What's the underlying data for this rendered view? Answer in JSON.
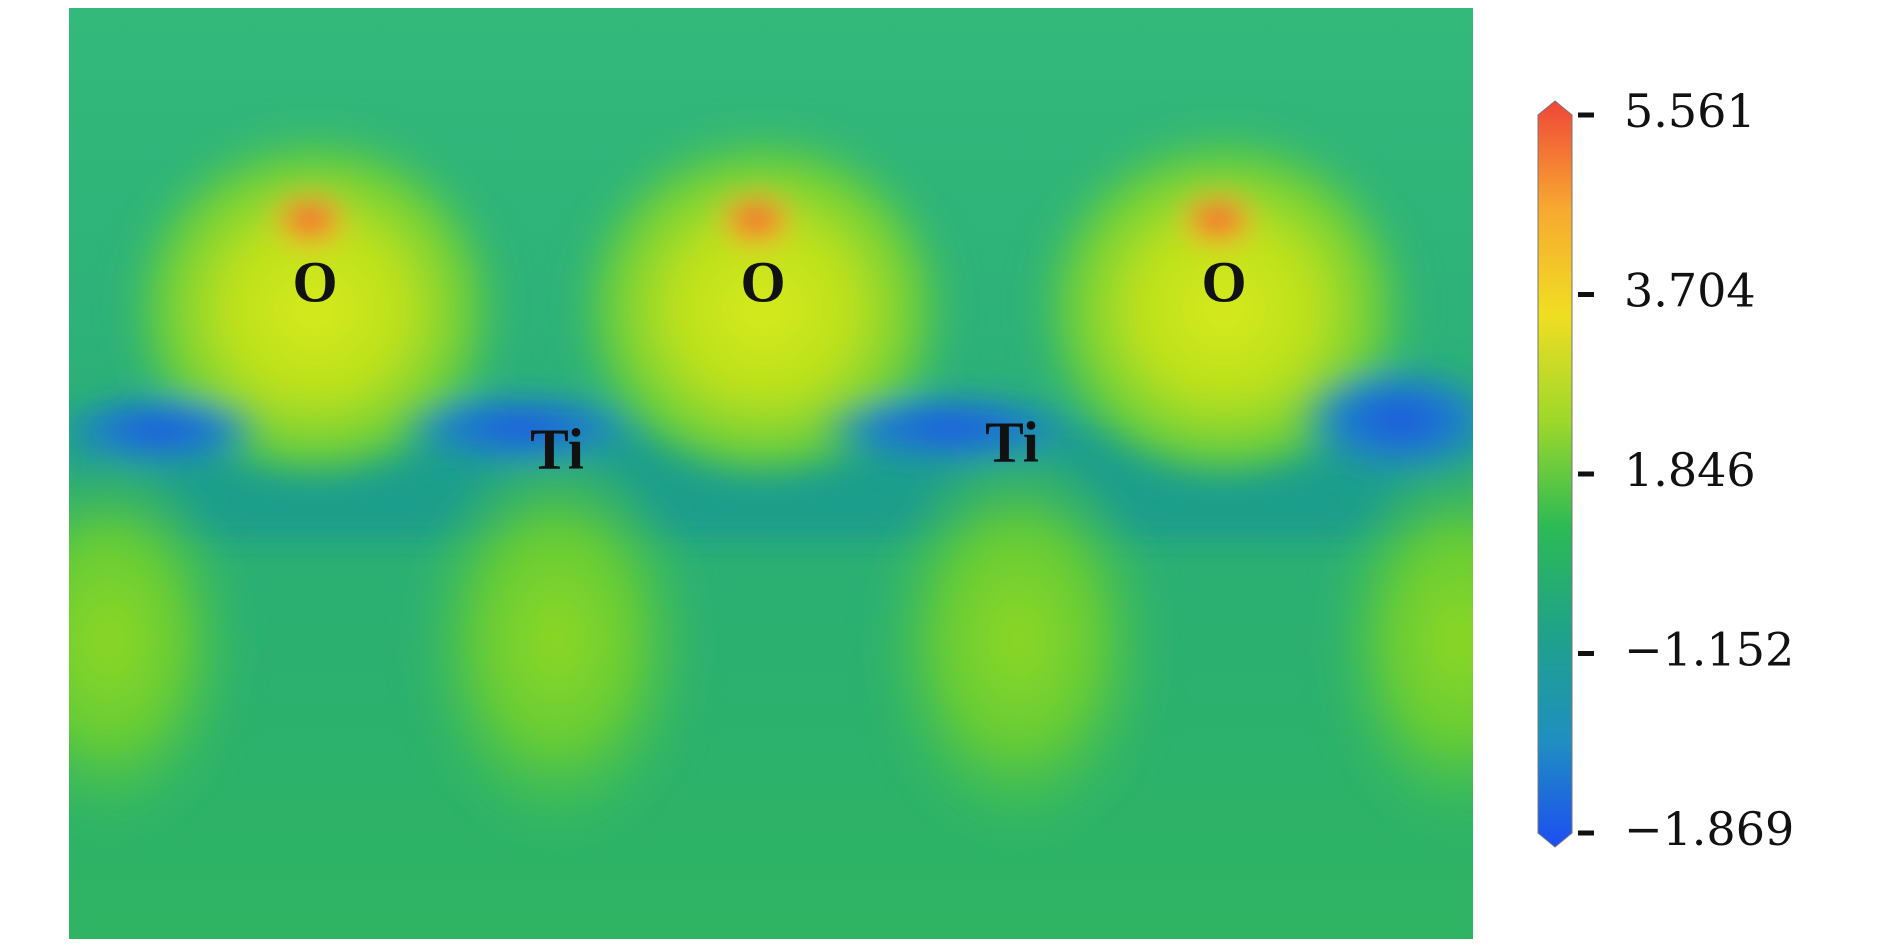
{
  "chart_data": {
    "type": "contour",
    "annotations": [
      "O",
      "O",
      "O",
      "Ti",
      "Ti"
    ],
    "colorbar": {
      "colors": [
        "#1d4ef2",
        "#1f8fc0",
        "#1fa28a",
        "#2cba55",
        "#9ed82a",
        "#f0de22",
        "#f7a830",
        "#f04638"
      ],
      "ticks": [
        {
          "value": -1.869,
          "label": "−1.869"
        },
        {
          "value": -1.152,
          "label": "−1.152"
        },
        1.846,
        3.704,
        5.561
      ]
    }
  }
}
